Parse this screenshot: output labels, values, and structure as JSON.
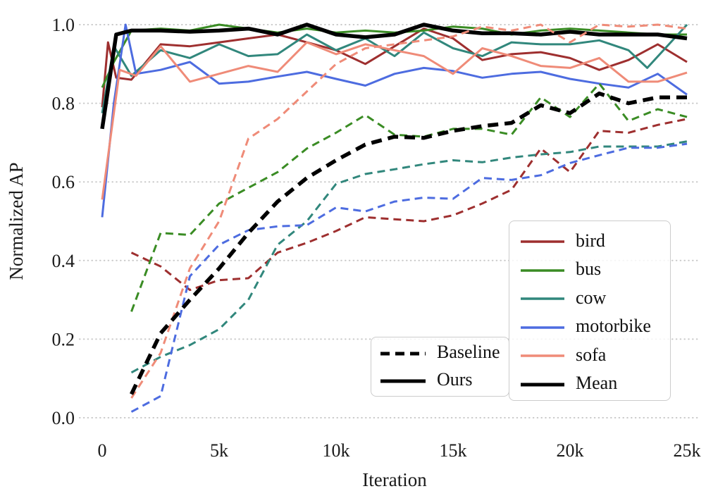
{
  "figure": {
    "xlabel": "Iteration",
    "ylabel": "Normalized AP",
    "x_ticks": [
      {
        "label": "0",
        "value": 0
      },
      {
        "label": "5k",
        "value": 5
      },
      {
        "label": "10k",
        "value": 10
      },
      {
        "label": "15k",
        "value": 15
      },
      {
        "label": "20k",
        "value": 20
      },
      {
        "label": "25k",
        "value": 25
      }
    ],
    "y_ticks": [
      {
        "label": "0.0",
        "value": 0.0
      },
      {
        "label": "0.2",
        "value": 0.2
      },
      {
        "label": "0.4",
        "value": 0.4
      },
      {
        "label": "0.6",
        "value": 0.6
      },
      {
        "label": "0.8",
        "value": 0.8
      },
      {
        "label": "1.0",
        "value": 1.0
      }
    ],
    "grid_color": "#c9c9c9",
    "background": "#ffffff"
  },
  "legend_categories": {
    "items": [
      {
        "label": "bird",
        "color": "#9e2f2f",
        "width": 3.5
      },
      {
        "label": "bus",
        "color": "#3a8c24",
        "width": 3.5
      },
      {
        "label": "cow",
        "color": "#31877c",
        "width": 3.5
      },
      {
        "label": "motorbike",
        "color": "#4d6ce0",
        "width": 3.5
      },
      {
        "label": "sofa",
        "color": "#ef8b78",
        "width": 3.5
      },
      {
        "label": "Mean",
        "color": "#000000",
        "width": 5
      }
    ]
  },
  "legend_styles": {
    "items": [
      {
        "label": "Baseline",
        "dash": true
      },
      {
        "label": "Ours",
        "dash": false
      }
    ]
  },
  "chart_data": {
    "type": "line",
    "title": "",
    "xlabel": "Iteration",
    "ylabel": "Normalized AP",
    "xlim_iterations": [
      0,
      25000
    ],
    "ylim": [
      -0.02,
      1.04
    ],
    "x_unit": "thousands of iterations",
    "grid": "horizontal dotted lines at y ticks",
    "legend_position": [
      "center-right categories box",
      "lower-center styles box"
    ],
    "series": [
      {
        "name": "bird (Ours)",
        "color": "#9e2f2f",
        "style": "solid",
        "width": 3,
        "x": [
          0,
          0.25,
          0.6,
          1.25,
          2.5,
          3.75,
          5,
          6.25,
          7.5,
          8.75,
          10,
          11.25,
          12.5,
          13.75,
          15,
          16.25,
          17.5,
          18.75,
          20,
          21.25,
          22.5,
          23.75,
          25
        ],
        "y": [
          0.79,
          0.955,
          0.865,
          0.86,
          0.95,
          0.945,
          0.955,
          0.965,
          0.975,
          0.955,
          0.935,
          0.9,
          0.945,
          0.99,
          0.965,
          0.91,
          0.925,
          0.93,
          0.915,
          0.885,
          0.91,
          0.95,
          0.905
        ]
      },
      {
        "name": "bus (Ours)",
        "color": "#3a8c24",
        "style": "solid",
        "width": 3,
        "x": [
          0,
          0.5,
          1.25,
          2.5,
          3.75,
          5,
          6.25,
          7.5,
          8.75,
          10,
          11.25,
          12.5,
          13.75,
          15,
          16.25,
          17.5,
          18.75,
          20,
          21.25,
          22.5,
          23.75,
          25
        ],
        "y": [
          0.84,
          0.905,
          0.985,
          0.99,
          0.985,
          1.0,
          0.99,
          0.98,
          0.99,
          0.98,
          0.985,
          0.98,
          0.985,
          0.995,
          0.99,
          0.975,
          0.985,
          0.99,
          0.985,
          0.98,
          0.975,
          0.975
        ]
      },
      {
        "name": "cow (Ours)",
        "color": "#31877c",
        "style": "solid",
        "width": 3,
        "x": [
          0,
          0.5,
          1.25,
          2.5,
          3.75,
          5,
          6.25,
          7.5,
          8.75,
          10,
          11.25,
          12.5,
          13.75,
          15,
          16.25,
          17.5,
          18.75,
          20,
          21.25,
          22.5,
          23.3,
          25
        ],
        "y": [
          0.775,
          0.945,
          0.87,
          0.935,
          0.915,
          0.95,
          0.92,
          0.925,
          0.975,
          0.935,
          0.965,
          0.92,
          0.98,
          0.94,
          0.92,
          0.955,
          0.95,
          0.95,
          0.96,
          0.935,
          0.89,
          1.0
        ]
      },
      {
        "name": "motorbike (Ours)",
        "color": "#4d6ce0",
        "style": "solid",
        "width": 3,
        "x": [
          0,
          0.5,
          1.0,
          1.45,
          2.5,
          3.75,
          5,
          6.25,
          7.5,
          8.75,
          10,
          11.25,
          12.5,
          13.75,
          15,
          16.25,
          17.5,
          18.75,
          20,
          21.25,
          22.5,
          23.75,
          25
        ],
        "y": [
          0.51,
          0.8,
          1.0,
          0.875,
          0.885,
          0.905,
          0.85,
          0.855,
          0.868,
          0.88,
          0.862,
          0.845,
          0.875,
          0.89,
          0.882,
          0.865,
          0.875,
          0.88,
          0.862,
          0.85,
          0.84,
          0.875,
          0.822
        ]
      },
      {
        "name": "sofa (Ours)",
        "color": "#ef8b78",
        "style": "solid",
        "width": 3,
        "x": [
          0,
          0.75,
          1.45,
          2.5,
          3.75,
          5,
          6.25,
          7.5,
          8.75,
          10,
          11.25,
          12.5,
          13.75,
          15,
          16.25,
          17.5,
          18.75,
          20,
          21.25,
          22.5,
          23.75,
          25
        ],
        "y": [
          0.555,
          0.885,
          0.87,
          0.945,
          0.855,
          0.875,
          0.895,
          0.88,
          0.955,
          0.925,
          0.95,
          0.935,
          0.92,
          0.875,
          0.94,
          0.92,
          0.895,
          0.89,
          0.915,
          0.855,
          0.855,
          0.878
        ]
      },
      {
        "name": "Mean (Ours)",
        "color": "#000000",
        "style": "solid",
        "width": 5.5,
        "x": [
          0,
          0.6,
          1.25,
          2.5,
          3.75,
          5,
          6.25,
          7.5,
          8.75,
          10,
          11.25,
          12.5,
          13.75,
          15,
          16.25,
          17.5,
          18.75,
          20,
          21.25,
          22.5,
          23.75,
          25
        ],
        "y": [
          0.735,
          0.975,
          0.985,
          0.985,
          0.982,
          0.985,
          0.99,
          0.975,
          1.0,
          0.975,
          0.968,
          0.975,
          1.0,
          0.985,
          0.978,
          0.978,
          0.975,
          0.982,
          0.975,
          0.975,
          0.975,
          0.965
        ]
      },
      {
        "name": "bird (Baseline)",
        "color": "#9e2f2f",
        "style": "dashed",
        "width": 3,
        "x": [
          1.25,
          2.5,
          3.75,
          5,
          6.25,
          7.5,
          8.75,
          10,
          11.25,
          12.5,
          13.75,
          15,
          16.25,
          17.5,
          18.75,
          20,
          21.25,
          22.5,
          23.75,
          25
        ],
        "y": [
          0.42,
          0.385,
          0.325,
          0.35,
          0.355,
          0.42,
          0.445,
          0.475,
          0.51,
          0.505,
          0.5,
          0.515,
          0.545,
          0.58,
          0.685,
          0.625,
          0.73,
          0.725,
          0.745,
          0.76
        ]
      },
      {
        "name": "bus (Baseline)",
        "color": "#3a8c24",
        "style": "dashed",
        "width": 3,
        "x": [
          1.25,
          2.5,
          3.75,
          5,
          6.25,
          7.5,
          8.75,
          10,
          11.25,
          12.5,
          13.75,
          15,
          16.25,
          17.5,
          18.75,
          20,
          21.25,
          22.5,
          23.75,
          25
        ],
        "y": [
          0.27,
          0.47,
          0.465,
          0.545,
          0.585,
          0.625,
          0.685,
          0.725,
          0.77,
          0.72,
          0.715,
          0.735,
          0.735,
          0.72,
          0.815,
          0.765,
          0.85,
          0.755,
          0.785,
          0.765
        ]
      },
      {
        "name": "cow (Baseline)",
        "color": "#31877c",
        "style": "dashed",
        "width": 3,
        "x": [
          1.25,
          2.5,
          3.75,
          5,
          6.25,
          7.5,
          8.75,
          10,
          11.25,
          12.5,
          13.75,
          15,
          16.25,
          17.5,
          18.75,
          20,
          21.25,
          22.5,
          23.75,
          25
        ],
        "y": [
          0.115,
          0.155,
          0.185,
          0.225,
          0.3,
          0.44,
          0.5,
          0.595,
          0.62,
          0.632,
          0.645,
          0.655,
          0.65,
          0.662,
          0.67,
          0.676,
          0.69,
          0.69,
          0.69,
          0.703
        ]
      },
      {
        "name": "motorbike (Baseline)",
        "color": "#4d6ce0",
        "style": "dashed",
        "width": 3,
        "x": [
          1.25,
          2.5,
          3.75,
          5,
          6.25,
          7.5,
          8.75,
          10,
          11.25,
          12.5,
          13.75,
          15,
          16.25,
          17.5,
          18.75,
          20,
          21.25,
          22.5,
          23.75,
          25
        ],
        "y": [
          0.015,
          0.055,
          0.36,
          0.44,
          0.477,
          0.487,
          0.49,
          0.535,
          0.525,
          0.55,
          0.56,
          0.557,
          0.61,
          0.605,
          0.617,
          0.648,
          0.668,
          0.687,
          0.687,
          0.697
        ]
      },
      {
        "name": "sofa (Baseline)",
        "color": "#ef8b78",
        "style": "dashed",
        "width": 3,
        "x": [
          1.25,
          2.5,
          3.75,
          5,
          6.25,
          7.5,
          8.75,
          10,
          11.25,
          12.5,
          13.75,
          15,
          16.25,
          17.5,
          18.75,
          20,
          21.25,
          22.5,
          23.75,
          25
        ],
        "y": [
          0.05,
          0.165,
          0.38,
          0.5,
          0.71,
          0.76,
          0.83,
          0.9,
          0.94,
          0.95,
          0.96,
          0.97,
          0.995,
          0.985,
          1.0,
          0.955,
          1.0,
          0.995,
          1.0,
          0.99
        ]
      },
      {
        "name": "Mean (Baseline)",
        "color": "#000000",
        "style": "dashed",
        "width": 5.5,
        "x": [
          1.25,
          2.5,
          3.75,
          5,
          6.25,
          7.5,
          8.75,
          10,
          11.25,
          12.5,
          13.75,
          15,
          16.25,
          17.5,
          18.75,
          20,
          21.25,
          22.5,
          23.75,
          25
        ],
        "y": [
          0.06,
          0.215,
          0.3,
          0.38,
          0.47,
          0.55,
          0.61,
          0.655,
          0.695,
          0.715,
          0.712,
          0.73,
          0.742,
          0.75,
          0.795,
          0.775,
          0.825,
          0.8,
          0.815,
          0.815
        ]
      }
    ]
  }
}
